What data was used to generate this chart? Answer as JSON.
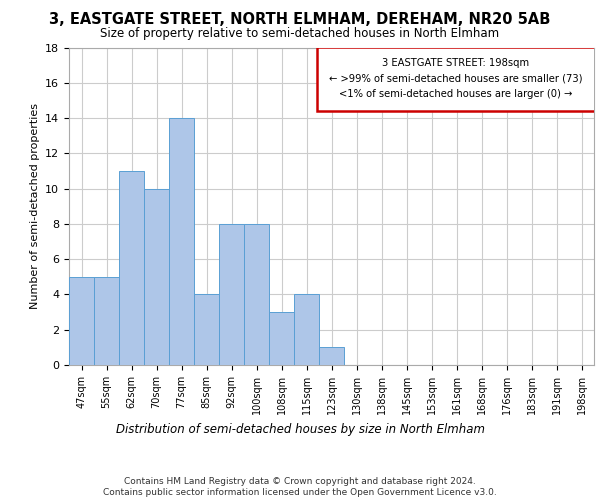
{
  "title": "3, EASTGATE STREET, NORTH ELMHAM, DEREHAM, NR20 5AB",
  "subtitle": "Size of property relative to semi-detached houses in North Elmham",
  "xlabel_bottom": "Distribution of semi-detached houses by size in North Elmham",
  "ylabel": "Number of semi-detached properties",
  "categories": [
    "47sqm",
    "55sqm",
    "62sqm",
    "70sqm",
    "77sqm",
    "85sqm",
    "92sqm",
    "100sqm",
    "108sqm",
    "115sqm",
    "123sqm",
    "130sqm",
    "138sqm",
    "145sqm",
    "153sqm",
    "161sqm",
    "168sqm",
    "176sqm",
    "183sqm",
    "191sqm",
    "198sqm"
  ],
  "values": [
    5,
    5,
    11,
    10,
    14,
    4,
    8,
    8,
    3,
    4,
    1,
    0,
    0,
    0,
    0,
    0,
    0,
    0,
    0,
    0,
    0
  ],
  "bar_color": "#aec6e8",
  "bar_edge_color": "#5a9fd4",
  "annotation_box_text": "3 EASTGATE STREET: 198sqm\n← >99% of semi-detached houses are smaller (73)\n<1% of semi-detached houses are larger (0) →",
  "annotation_box_color": "#cc0000",
  "ylim": [
    0,
    18
  ],
  "yticks": [
    0,
    2,
    4,
    6,
    8,
    10,
    12,
    14,
    16,
    18
  ],
  "footer": "Contains HM Land Registry data © Crown copyright and database right 2024.\nContains public sector information licensed under the Open Government Licence v3.0.",
  "grid_color": "#cccccc",
  "background_color": "#ffffff"
}
